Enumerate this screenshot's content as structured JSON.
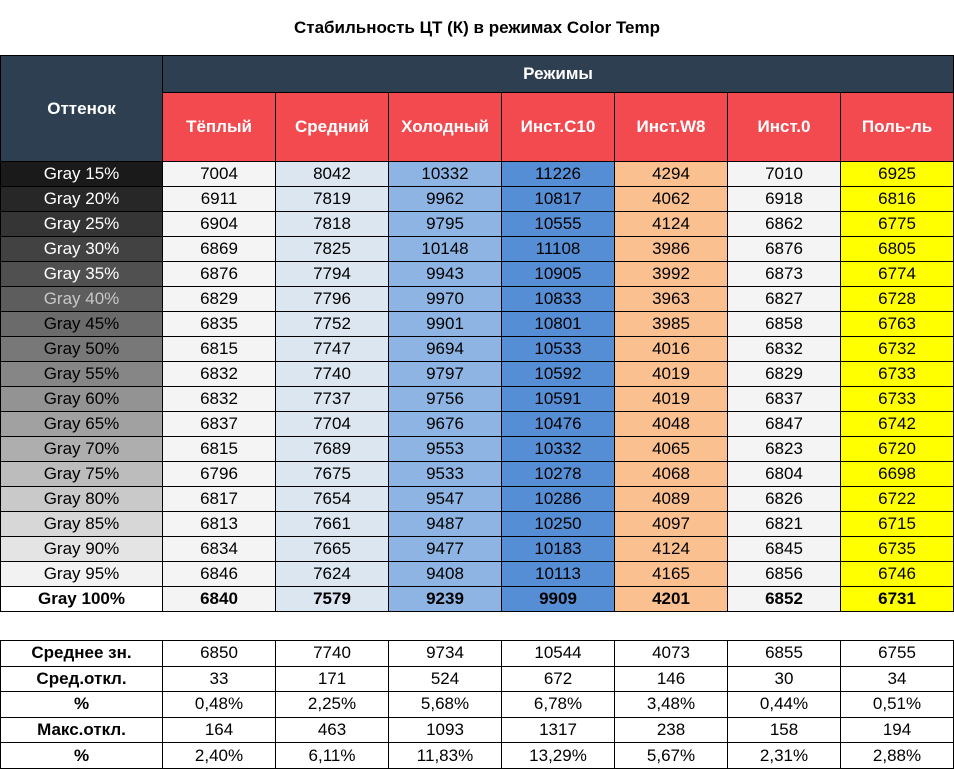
{
  "title": "Стабильность ЦТ (К) в режимах Color Temp",
  "header": {
    "corner": "Оттенок",
    "group": "Режимы",
    "columns": [
      "Тёплый",
      "Средний",
      "Холодный",
      "Инст.C10",
      "Инст.W8",
      "Инст.0",
      "Поль-ль"
    ]
  },
  "rows": [
    {
      "label": "Gray 15%",
      "values": [
        7004,
        8042,
        10332,
        11226,
        4294,
        7010,
        6925
      ]
    },
    {
      "label": "Gray 20%",
      "values": [
        6911,
        7819,
        9962,
        10817,
        4062,
        6918,
        6816
      ]
    },
    {
      "label": "Gray 25%",
      "values": [
        6904,
        7818,
        9795,
        10555,
        4124,
        6862,
        6775
      ]
    },
    {
      "label": "Gray 30%",
      "values": [
        6869,
        7825,
        10148,
        11108,
        3986,
        6876,
        6805
      ]
    },
    {
      "label": "Gray 35%",
      "values": [
        6876,
        7794,
        9943,
        10905,
        3992,
        6873,
        6774
      ]
    },
    {
      "label": "Gray 40%",
      "values": [
        6829,
        7796,
        9970,
        10833,
        3963,
        6827,
        6728
      ]
    },
    {
      "label": "Gray 45%",
      "values": [
        6835,
        7752,
        9901,
        10801,
        3985,
        6858,
        6763
      ]
    },
    {
      "label": "Gray 50%",
      "values": [
        6815,
        7747,
        9694,
        10533,
        4016,
        6832,
        6732
      ]
    },
    {
      "label": "Gray 55%",
      "values": [
        6832,
        7740,
        9797,
        10592,
        4019,
        6829,
        6733
      ]
    },
    {
      "label": "Gray 60%",
      "values": [
        6832,
        7737,
        9756,
        10591,
        4019,
        6837,
        6733
      ]
    },
    {
      "label": "Gray 65%",
      "values": [
        6837,
        7704,
        9676,
        10476,
        4048,
        6847,
        6742
      ]
    },
    {
      "label": "Gray 70%",
      "values": [
        6815,
        7689,
        9553,
        10332,
        4065,
        6823,
        6720
      ]
    },
    {
      "label": "Gray 75%",
      "values": [
        6796,
        7675,
        9533,
        10278,
        4068,
        6804,
        6698
      ]
    },
    {
      "label": "Gray 80%",
      "values": [
        6817,
        7654,
        9547,
        10286,
        4089,
        6826,
        6722
      ]
    },
    {
      "label": "Gray 85%",
      "values": [
        6813,
        7661,
        9487,
        10250,
        4097,
        6821,
        6715
      ]
    },
    {
      "label": "Gray 90%",
      "values": [
        6834,
        7665,
        9477,
        10183,
        4124,
        6845,
        6735
      ]
    },
    {
      "label": "Gray 95%",
      "values": [
        6846,
        7624,
        9408,
        10113,
        4165,
        6856,
        6746
      ]
    },
    {
      "label": "Gray 100%",
      "values": [
        6840,
        7579,
        9239,
        9909,
        4201,
        6852,
        6731
      ]
    }
  ],
  "stats": [
    {
      "label": "Среднее зн.",
      "values": [
        6850,
        7740,
        9734,
        10544,
        4073,
        6855,
        6755
      ]
    },
    {
      "label": "Сред.откл.",
      "values": [
        33,
        171,
        524,
        672,
        146,
        30,
        34
      ]
    },
    {
      "label": "%",
      "values": [
        "0,48%",
        "2,25%",
        "5,68%",
        "6,78%",
        "3,48%",
        "0,44%",
        "0,51%"
      ]
    },
    {
      "label": "Макс.откл.",
      "values": [
        164,
        463,
        1093,
        1317,
        238,
        158,
        194
      ]
    },
    {
      "label": "%",
      "values": [
        "2,40%",
        "6,11%",
        "11,83%",
        "13,29%",
        "5,67%",
        "2,31%",
        "2,88%"
      ]
    }
  ]
}
